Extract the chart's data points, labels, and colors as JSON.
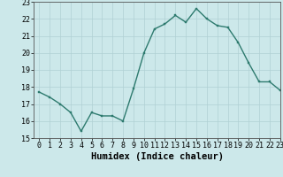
{
  "x": [
    0,
    1,
    2,
    3,
    4,
    5,
    6,
    7,
    8,
    9,
    10,
    11,
    12,
    13,
    14,
    15,
    16,
    17,
    18,
    19,
    20,
    21,
    22,
    23
  ],
  "y": [
    17.7,
    17.4,
    17.0,
    16.5,
    15.4,
    16.5,
    16.3,
    16.3,
    16.0,
    17.9,
    20.0,
    21.4,
    21.7,
    22.2,
    21.8,
    22.6,
    22.0,
    21.6,
    21.5,
    20.6,
    19.4,
    18.3,
    18.3,
    17.8
  ],
  "xlabel": "Humidex (Indice chaleur)",
  "ylim": [
    15,
    23
  ],
  "xlim": [
    -0.5,
    23
  ],
  "yticks": [
    15,
    16,
    17,
    18,
    19,
    20,
    21,
    22,
    23
  ],
  "xticks": [
    0,
    1,
    2,
    3,
    4,
    5,
    6,
    7,
    8,
    9,
    10,
    11,
    12,
    13,
    14,
    15,
    16,
    17,
    18,
    19,
    20,
    21,
    22,
    23
  ],
  "line_color": "#2d7a6e",
  "marker_color": "#2d7a6e",
  "bg_color": "#cce8ea",
  "grid_color": "#b0d0d4",
  "tick_label_fontsize": 6,
  "xlabel_fontsize": 7.5,
  "marker_size": 2.0,
  "line_width": 1.0
}
